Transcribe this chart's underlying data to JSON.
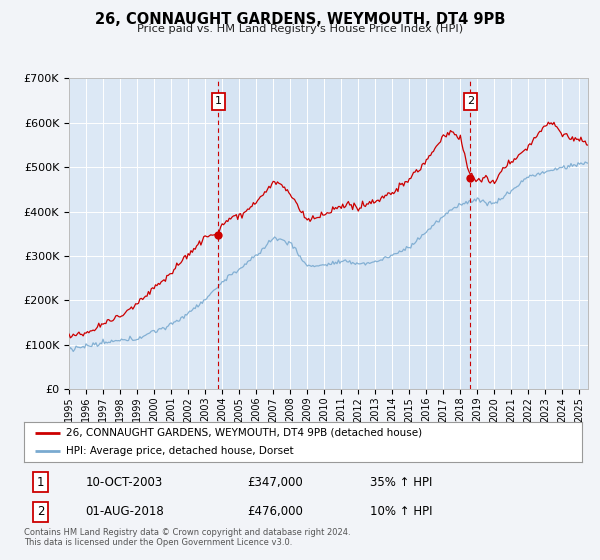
{
  "title": "26, CONNAUGHT GARDENS, WEYMOUTH, DT4 9PB",
  "subtitle": "Price paid vs. HM Land Registry's House Price Index (HPI)",
  "background_color": "#f2f4f8",
  "plot_bg_color": "#dce8f5",
  "grid_color": "#ffffff",
  "ylim": [
    0,
    700000
  ],
  "xlim_start": 1995.0,
  "xlim_end": 2025.5,
  "ylabel_ticks": [
    "£0",
    "£100K",
    "£200K",
    "£300K",
    "£400K",
    "£500K",
    "£600K",
    "£700K"
  ],
  "ytick_vals": [
    0,
    100000,
    200000,
    300000,
    400000,
    500000,
    600000,
    700000
  ],
  "xtick_years": [
    1995,
    1996,
    1997,
    1998,
    1999,
    2000,
    2001,
    2002,
    2003,
    2004,
    2005,
    2006,
    2007,
    2008,
    2009,
    2010,
    2011,
    2012,
    2013,
    2014,
    2015,
    2016,
    2017,
    2018,
    2019,
    2020,
    2021,
    2022,
    2023,
    2024,
    2025
  ],
  "sale1_x": 2003.78,
  "sale1_y": 347000,
  "sale1_label": "1",
  "sale1_date": "10-OCT-2003",
  "sale1_price": "£347,000",
  "sale1_hpi": "35% ↑ HPI",
  "sale2_x": 2018.58,
  "sale2_y": 476000,
  "sale2_label": "2",
  "sale2_date": "01-AUG-2018",
  "sale2_price": "£476,000",
  "sale2_hpi": "10% ↑ HPI",
  "red_line_color": "#cc0000",
  "blue_line_color": "#7aaad0",
  "sale_dot_color": "#cc0000",
  "vline_color": "#cc0000",
  "shade_color": "#ccdff0",
  "legend_label_red": "26, CONNAUGHT GARDENS, WEYMOUTH, DT4 9PB (detached house)",
  "legend_label_blue": "HPI: Average price, detached house, Dorset",
  "footnote": "Contains HM Land Registry data © Crown copyright and database right 2024.\nThis data is licensed under the Open Government Licence v3.0."
}
